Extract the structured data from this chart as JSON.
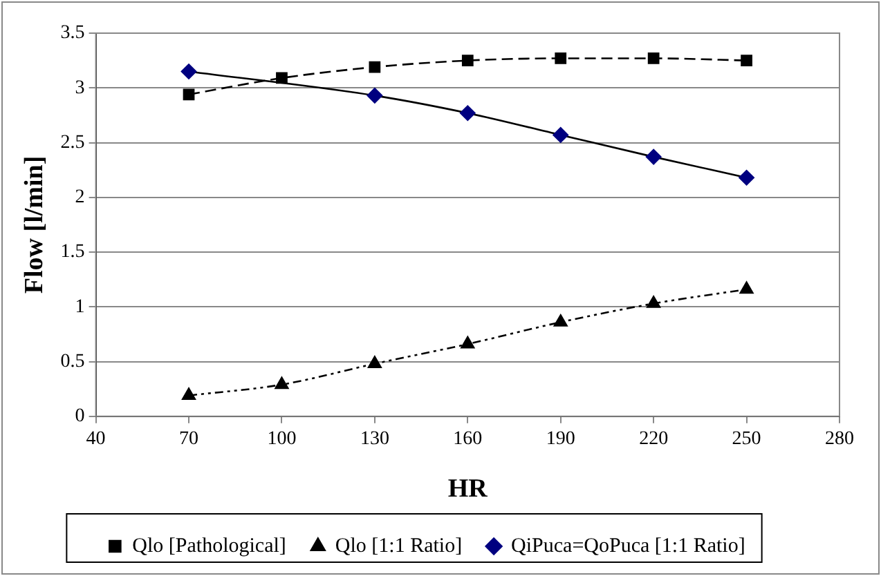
{
  "chart_data": {
    "type": "line",
    "xlabel": "HR",
    "ylabel": "Flow [l/min]",
    "x": [
      70,
      100,
      130,
      160,
      190,
      220,
      250
    ],
    "series": [
      {
        "name": "Qlo [Pathological]",
        "color": "#000000",
        "marker": "square",
        "line_style": "dashed",
        "values": [
          2.94,
          3.09,
          3.19,
          3.25,
          3.27,
          3.27,
          3.25
        ]
      },
      {
        "name": "Qlo [1:1 Ratio]",
        "color": "#000000",
        "marker": "triangle",
        "line_style": "dotted",
        "values": [
          0.19,
          0.29,
          0.48,
          0.66,
          0.86,
          1.03,
          1.16
        ]
      },
      {
        "name": "QiPuca=QoPuca [1:1 Ratio]",
        "color": "#000080",
        "marker": "diamond",
        "line_style": "solid",
        "values": [
          3.15,
          null,
          2.93,
          2.77,
          2.57,
          2.37,
          2.18
        ]
      }
    ],
    "xlim": [
      40,
      280
    ],
    "xticks": [
      40,
      70,
      100,
      130,
      160,
      190,
      220,
      250,
      280
    ],
    "ylim": [
      0,
      3.5
    ],
    "yticks": [
      0,
      0.5,
      1,
      1.5,
      2,
      2.5,
      3,
      3.5
    ],
    "grid": "y",
    "legend": "bottom"
  }
}
